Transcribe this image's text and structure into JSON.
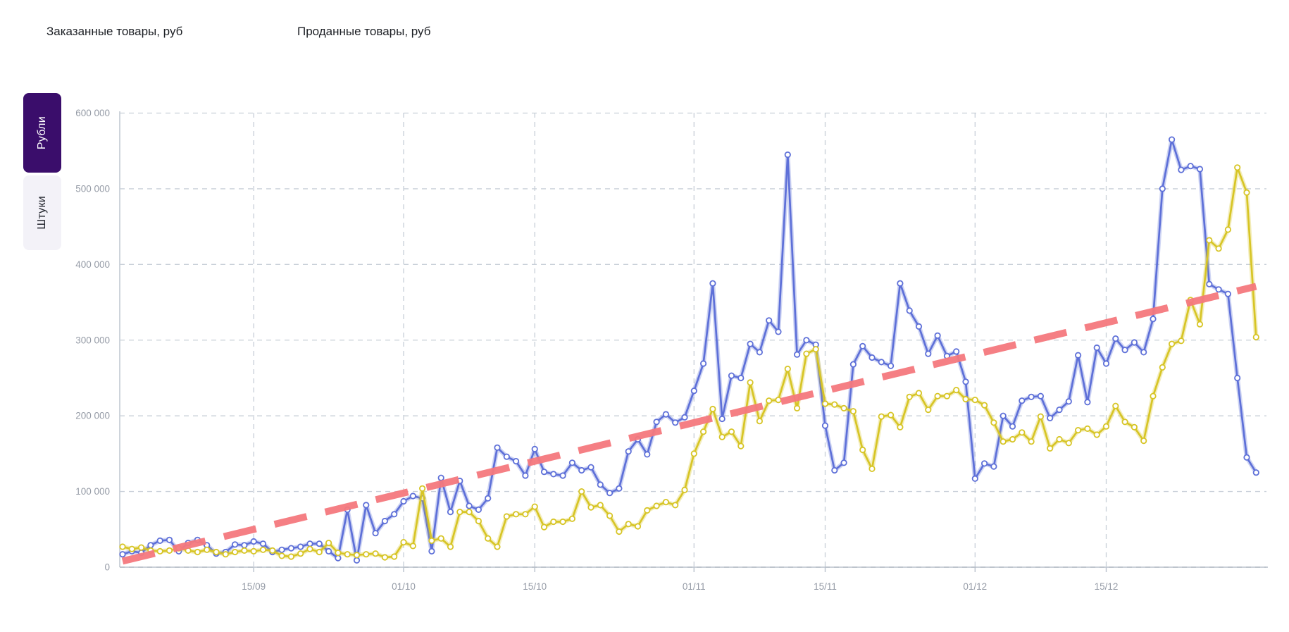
{
  "legend": {
    "items": [
      {
        "label": "Заказанные товары, руб",
        "color": "#4c6de0",
        "checked": true
      },
      {
        "label": "Проданные товары, руб",
        "color": "#d9c41d",
        "checked": true
      }
    ]
  },
  "tabs": [
    {
      "label": "Рубли",
      "active": true
    },
    {
      "label": "Штуки",
      "active": false
    }
  ],
  "chart_data": {
    "type": "line",
    "x_unit": "day",
    "x_start": "01/09",
    "x_end": "31/12",
    "n_points": 122,
    "grid": true,
    "ylim": [
      0,
      600000
    ],
    "yticks": [
      0,
      100000,
      200000,
      300000,
      400000,
      500000,
      600000
    ],
    "ytick_labels": [
      "0",
      "100 000",
      "200 000",
      "300 000",
      "400 000",
      "500 000",
      "600 000"
    ],
    "xticks": [
      {
        "label": "15/09",
        "day": 14
      },
      {
        "label": "01/10",
        "day": 30
      },
      {
        "label": "15/10",
        "day": 44
      },
      {
        "label": "01/11",
        "day": 61
      },
      {
        "label": "15/11",
        "day": 75
      },
      {
        "label": "01/12",
        "day": 91
      },
      {
        "label": "15/12",
        "day": 105
      }
    ],
    "series": [
      {
        "name": "Заказанные товары, руб",
        "color": "#5e70d8",
        "values": [
          17000,
          21000,
          19000,
          29000,
          35000,
          36000,
          21000,
          32000,
          36000,
          29000,
          18000,
          20000,
          30000,
          29000,
          34000,
          31000,
          20000,
          23000,
          25000,
          27000,
          31000,
          31000,
          21000,
          12000,
          76000,
          9000,
          82000,
          45000,
          61000,
          70000,
          87000,
          94000,
          91000,
          21000,
          118000,
          73000,
          114000,
          81000,
          76000,
          91000,
          158000,
          146000,
          140000,
          121000,
          156000,
          126000,
          123000,
          121000,
          138000,
          128000,
          132000,
          109000,
          98000,
          104000,
          153000,
          169000,
          149000,
          192000,
          202000,
          191000,
          198000,
          233000,
          269000,
          375000,
          196000,
          253000,
          250000,
          295000,
          284000,
          326000,
          311000,
          545000,
          281000,
          300000,
          294000,
          187000,
          128000,
          138000,
          268000,
          292000,
          277000,
          271000,
          266000,
          375000,
          339000,
          318000,
          282000,
          306000,
          279000,
          285000,
          245000,
          117000,
          137000,
          133000,
          200000,
          186000,
          220000,
          225000,
          226000,
          197000,
          208000,
          219000,
          280000,
          218000,
          290000,
          269000,
          302000,
          287000,
          297000,
          284000,
          328000,
          500000,
          565000,
          525000,
          530000,
          526000,
          374000,
          367000,
          361000,
          250000,
          145000,
          125000
        ]
      },
      {
        "name": "Проданные товары, руб",
        "color": "#d7c526",
        "values": [
          27000,
          24000,
          26000,
          22000,
          21000,
          22000,
          25000,
          22000,
          20000,
          23000,
          20000,
          17000,
          20000,
          22000,
          21000,
          23000,
          22000,
          15000,
          14000,
          18000,
          24000,
          20000,
          32000,
          19000,
          17000,
          16000,
          17000,
          18000,
          13000,
          14000,
          33000,
          28000,
          104000,
          35000,
          38000,
          27000,
          73000,
          73000,
          61000,
          38000,
          27000,
          67000,
          70000,
          70000,
          80000,
          53000,
          60000,
          60000,
          64000,
          100000,
          79000,
          82000,
          68000,
          47000,
          57000,
          54000,
          75000,
          81000,
          86000,
          82000,
          102000,
          150000,
          179000,
          209000,
          172000,
          179000,
          160000,
          244000,
          193000,
          220000,
          221000,
          262000,
          210000,
          282000,
          288000,
          216000,
          215000,
          210000,
          206000,
          155000,
          130000,
          199000,
          201000,
          185000,
          225000,
          230000,
          208000,
          226000,
          226000,
          234000,
          222000,
          221000,
          214000,
          191000,
          166000,
          169000,
          178000,
          166000,
          199000,
          157000,
          169000,
          164000,
          181000,
          183000,
          175000,
          186000,
          213000,
          192000,
          185000,
          167000,
          226000,
          264000,
          295000,
          299000,
          353000,
          321000,
          432000,
          421000,
          446000,
          528000,
          495000,
          304000
        ]
      }
    ],
    "trend": {
      "name": "trend-line",
      "color": "#f5797e",
      "start_value": 8000,
      "end_value": 371000
    },
    "style": {
      "grid_color": "#c8cfd8",
      "axis_color": "#b9c1cc",
      "tick_label_color": "#959ba6",
      "background": "#ffffff"
    }
  }
}
